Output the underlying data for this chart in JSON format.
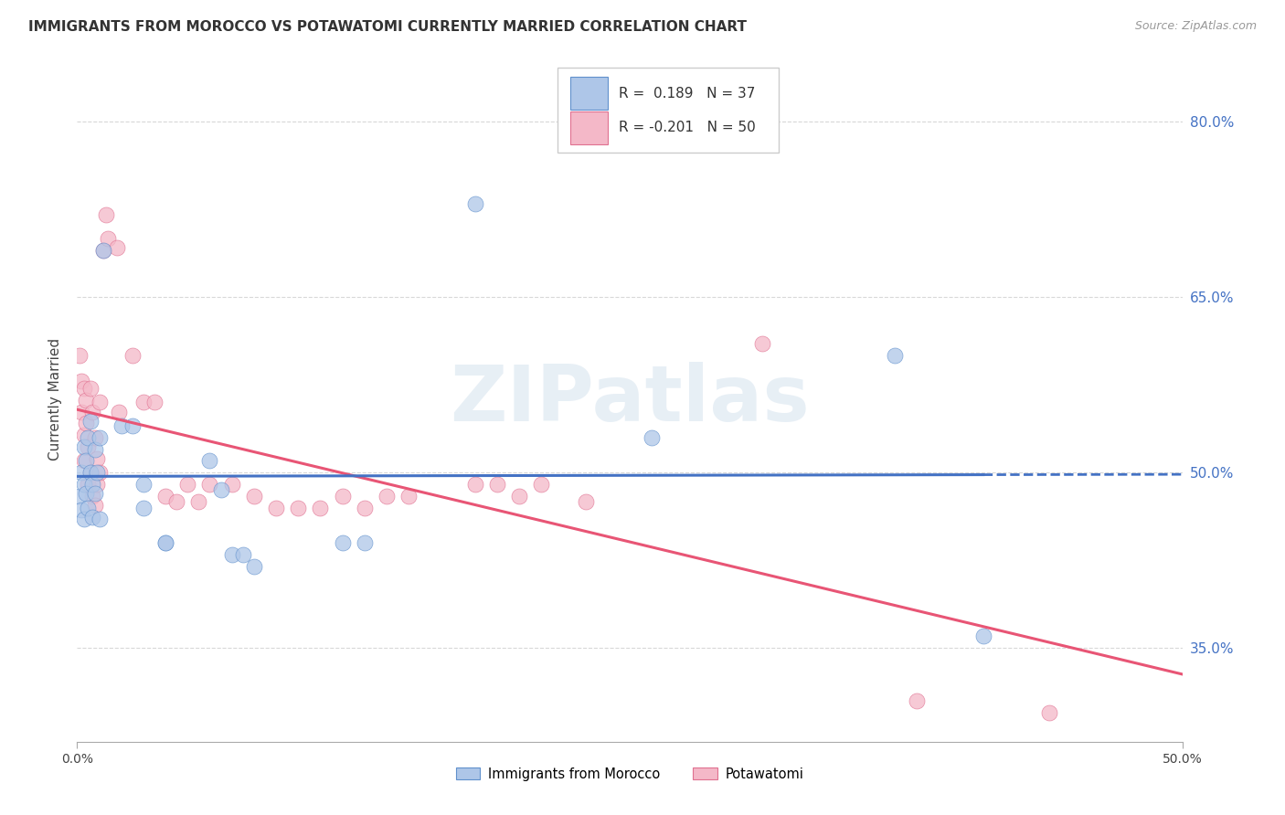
{
  "title": "IMMIGRANTS FROM MOROCCO VS POTAWATOMI CURRENTLY MARRIED CORRELATION CHART",
  "source": "Source: ZipAtlas.com",
  "ylabel": "Currently Married",
  "y_tick_labels": [
    "35.0%",
    "50.0%",
    "65.0%",
    "80.0%"
  ],
  "y_tick_values": [
    0.35,
    0.5,
    0.65,
    0.8
  ],
  "x_range": [
    0.0,
    0.5
  ],
  "y_range": [
    0.27,
    0.855
  ],
  "legend_labels": [
    "Immigrants from Morocco",
    "Potawatomi"
  ],
  "R_blue": "0.189",
  "N_blue": "37",
  "R_pink": "-0.201",
  "N_pink": "50",
  "blue_fill": "#aec6e8",
  "pink_fill": "#f4b8c8",
  "blue_edge": "#6090cc",
  "pink_edge": "#e07090",
  "blue_line": "#4472c4",
  "pink_line": "#e85575",
  "blue_scatter": [
    [
      0.001,
      0.48
    ],
    [
      0.002,
      0.5
    ],
    [
      0.002,
      0.468
    ],
    [
      0.003,
      0.49
    ],
    [
      0.003,
      0.522
    ],
    [
      0.003,
      0.46
    ],
    [
      0.004,
      0.51
    ],
    [
      0.004,
      0.482
    ],
    [
      0.005,
      0.53
    ],
    [
      0.005,
      0.47
    ],
    [
      0.006,
      0.5
    ],
    [
      0.006,
      0.544
    ],
    [
      0.007,
      0.49
    ],
    [
      0.007,
      0.462
    ],
    [
      0.008,
      0.52
    ],
    [
      0.008,
      0.482
    ],
    [
      0.009,
      0.5
    ],
    [
      0.01,
      0.46
    ],
    [
      0.01,
      0.53
    ],
    [
      0.012,
      0.69
    ],
    [
      0.02,
      0.54
    ],
    [
      0.025,
      0.54
    ],
    [
      0.03,
      0.49
    ],
    [
      0.03,
      0.47
    ],
    [
      0.04,
      0.44
    ],
    [
      0.04,
      0.44
    ],
    [
      0.06,
      0.51
    ],
    [
      0.065,
      0.485
    ],
    [
      0.07,
      0.43
    ],
    [
      0.075,
      0.43
    ],
    [
      0.08,
      0.42
    ],
    [
      0.12,
      0.44
    ],
    [
      0.13,
      0.44
    ],
    [
      0.18,
      0.73
    ],
    [
      0.26,
      0.53
    ],
    [
      0.37,
      0.6
    ],
    [
      0.41,
      0.36
    ]
  ],
  "pink_scatter": [
    [
      0.001,
      0.6
    ],
    [
      0.002,
      0.578
    ],
    [
      0.002,
      0.552
    ],
    [
      0.003,
      0.572
    ],
    [
      0.003,
      0.532
    ],
    [
      0.003,
      0.51
    ],
    [
      0.004,
      0.562
    ],
    [
      0.004,
      0.542
    ],
    [
      0.005,
      0.522
    ],
    [
      0.005,
      0.49
    ],
    [
      0.006,
      0.572
    ],
    [
      0.006,
      0.5
    ],
    [
      0.007,
      0.552
    ],
    [
      0.007,
      0.48
    ],
    [
      0.008,
      0.53
    ],
    [
      0.008,
      0.472
    ],
    [
      0.009,
      0.512
    ],
    [
      0.009,
      0.49
    ],
    [
      0.01,
      0.5
    ],
    [
      0.01,
      0.56
    ],
    [
      0.012,
      0.69
    ],
    [
      0.013,
      0.72
    ],
    [
      0.014,
      0.7
    ],
    [
      0.018,
      0.692
    ],
    [
      0.019,
      0.552
    ],
    [
      0.025,
      0.6
    ],
    [
      0.03,
      0.56
    ],
    [
      0.035,
      0.56
    ],
    [
      0.04,
      0.48
    ],
    [
      0.045,
      0.475
    ],
    [
      0.05,
      0.49
    ],
    [
      0.055,
      0.475
    ],
    [
      0.06,
      0.49
    ],
    [
      0.07,
      0.49
    ],
    [
      0.08,
      0.48
    ],
    [
      0.09,
      0.47
    ],
    [
      0.1,
      0.47
    ],
    [
      0.11,
      0.47
    ],
    [
      0.12,
      0.48
    ],
    [
      0.13,
      0.47
    ],
    [
      0.14,
      0.48
    ],
    [
      0.15,
      0.48
    ],
    [
      0.18,
      0.49
    ],
    [
      0.19,
      0.49
    ],
    [
      0.2,
      0.48
    ],
    [
      0.21,
      0.49
    ],
    [
      0.23,
      0.475
    ],
    [
      0.31,
      0.61
    ],
    [
      0.38,
      0.305
    ],
    [
      0.44,
      0.295
    ]
  ],
  "watermark": "ZIPatlas",
  "background_color": "#ffffff",
  "grid_color": "#d8d8d8"
}
